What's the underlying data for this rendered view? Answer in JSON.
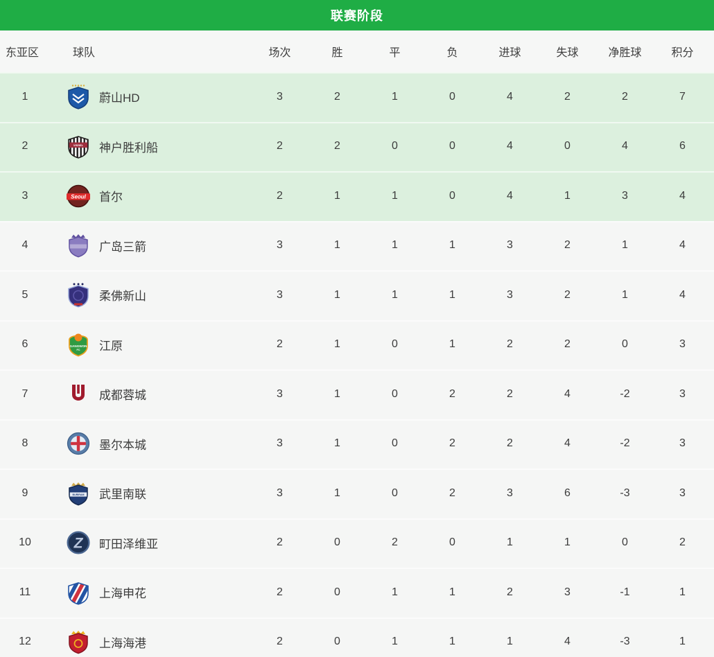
{
  "header": {
    "title": "联赛阶段"
  },
  "colors": {
    "header_green": "#1fad45",
    "highlight_row": "#dcf0de",
    "row_bg": "#f5f6f5",
    "text": "#3c3c3c"
  },
  "table": {
    "columns": [
      "东亚区",
      "球队",
      "场次",
      "胜",
      "平",
      "负",
      "进球",
      "失球",
      "净胜球",
      "积分"
    ],
    "stat_keys": [
      "played",
      "wins",
      "draws",
      "losses",
      "goals-for",
      "goals-against",
      "goal-diff",
      "points"
    ],
    "rows": [
      {
        "rank": "1",
        "team": "蔚山HD",
        "highlight": true,
        "logo": {
          "icon": "ulsan-hd-crest-icon",
          "kind": "chevron-shield",
          "bg": "#1d59a8",
          "border": "#16407c",
          "accent": "#ffffff",
          "stars": "#d9af3e"
        },
        "stats": [
          "3",
          "2",
          "1",
          "0",
          "4",
          "2",
          "2",
          "7"
        ]
      },
      {
        "rank": "2",
        "team": "神户胜利船",
        "highlight": true,
        "logo": {
          "icon": "vissel-kobe-crest-icon",
          "kind": "striped-shield",
          "bg": "#ffffff",
          "stripe": "#221f1f",
          "band": "#9e2f3e",
          "text": "VISSEL",
          "text_color": "#ffffff"
        },
        "stats": [
          "2",
          "2",
          "0",
          "0",
          "4",
          "0",
          "4",
          "6"
        ]
      },
      {
        "rank": "3",
        "team": "首尔",
        "highlight": true,
        "logo": {
          "icon": "fc-seoul-crest-icon",
          "kind": "circle-ribbon",
          "bg": "#73231f",
          "border": "#43120f",
          "ribbon": "#df2b2b",
          "text": "Seoul",
          "text_color": "#ffffff"
        },
        "stats": [
          "2",
          "1",
          "1",
          "0",
          "4",
          "1",
          "3",
          "4"
        ]
      },
      {
        "rank": "4",
        "team": "广岛三箭",
        "highlight": false,
        "logo": {
          "icon": "sanfrecce-hiroshima-crest-icon",
          "kind": "crown-shield",
          "bg": "#8a7cc0",
          "border": "#6152a0",
          "crown": "#6152a0",
          "band": "#b4aad6",
          "text": "",
          "text_color": "#6152a0"
        },
        "stats": [
          "3",
          "1",
          "1",
          "1",
          "3",
          "2",
          "1",
          "4"
        ]
      },
      {
        "rank": "5",
        "team": "柔佛新山",
        "highlight": false,
        "logo": {
          "icon": "johor-darul-tazim-crest-icon",
          "kind": "star-shield",
          "bg": "#35307c",
          "border": "#97a6d8",
          "accent": "#5c55a8",
          "stars": "#20225c",
          "banner": "#c8322e"
        },
        "stats": [
          "3",
          "1",
          "1",
          "1",
          "3",
          "2",
          "1",
          "4"
        ]
      },
      {
        "rank": "6",
        "team": "江原",
        "highlight": false,
        "logo": {
          "icon": "gangwon-fc-crest-icon",
          "kind": "dome-shield",
          "bg": "#2f9b43",
          "border": "#e8a01e",
          "dome": "#f0861c",
          "text": "GANGWON",
          "text2": "FC",
          "text_color": "#ffffff"
        },
        "stats": [
          "2",
          "1",
          "0",
          "1",
          "2",
          "2",
          "0",
          "3"
        ]
      },
      {
        "rank": "7",
        "team": "成都蓉城",
        "highlight": false,
        "logo": {
          "icon": "chengdu-rongcheng-crest-icon",
          "kind": "u-mark",
          "color": "#a01b2d"
        },
        "stats": [
          "3",
          "1",
          "0",
          "2",
          "2",
          "4",
          "-2",
          "3"
        ]
      },
      {
        "rank": "8",
        "team": "墨尔本城",
        "highlight": false,
        "logo": {
          "icon": "melbourne-city-crest-icon",
          "kind": "cross-circle",
          "ring": "#587da8",
          "inner": "#e4ecf5",
          "cross": "#cf3340",
          "border": "#3c5e87"
        },
        "stats": [
          "3",
          "1",
          "0",
          "2",
          "2",
          "4",
          "-2",
          "3"
        ]
      },
      {
        "rank": "9",
        "team": "武里南联",
        "highlight": false,
        "logo": {
          "icon": "buriram-united-crest-icon",
          "kind": "crown-shield",
          "bg": "#223f77",
          "border": "#15294e",
          "crown": "#cfa94a",
          "band": "#e8edf5",
          "text": "BURIRAM",
          "text_color": "#223f77"
        },
        "stats": [
          "3",
          "1",
          "0",
          "2",
          "3",
          "6",
          "-3",
          "3"
        ]
      },
      {
        "rank": "10",
        "team": "町田泽维亚",
        "highlight": false,
        "logo": {
          "icon": "machida-zelvia-crest-icon",
          "kind": "letter-circle",
          "bg": "#1f3354",
          "ring": "#4a6690",
          "letter": "Z",
          "letter_color": "#b9c6dd"
        },
        "stats": [
          "2",
          "0",
          "2",
          "0",
          "1",
          "1",
          "0",
          "2"
        ]
      },
      {
        "rank": "11",
        "team": "上海申花",
        "highlight": false,
        "logo": {
          "icon": "shanghai-shenhua-crest-icon",
          "kind": "diagonal-shield",
          "bg": "#ffffff",
          "border": "#2455a4",
          "stripes": [
            "#2455a4",
            "#cf3340",
            "#2455a4"
          ]
        },
        "stats": [
          "2",
          "0",
          "1",
          "1",
          "2",
          "3",
          "-1",
          "1"
        ]
      },
      {
        "rank": "12",
        "team": "上海海港",
        "highlight": false,
        "logo": {
          "icon": "shanghai-port-crest-icon",
          "kind": "crown-shield",
          "bg": "#c31e2f",
          "border": "#851320",
          "crown": "#eeb21f",
          "band": null,
          "text": "",
          "text_color": ""
        },
        "stats": [
          "2",
          "0",
          "1",
          "1",
          "1",
          "4",
          "-3",
          "1"
        ]
      }
    ]
  }
}
